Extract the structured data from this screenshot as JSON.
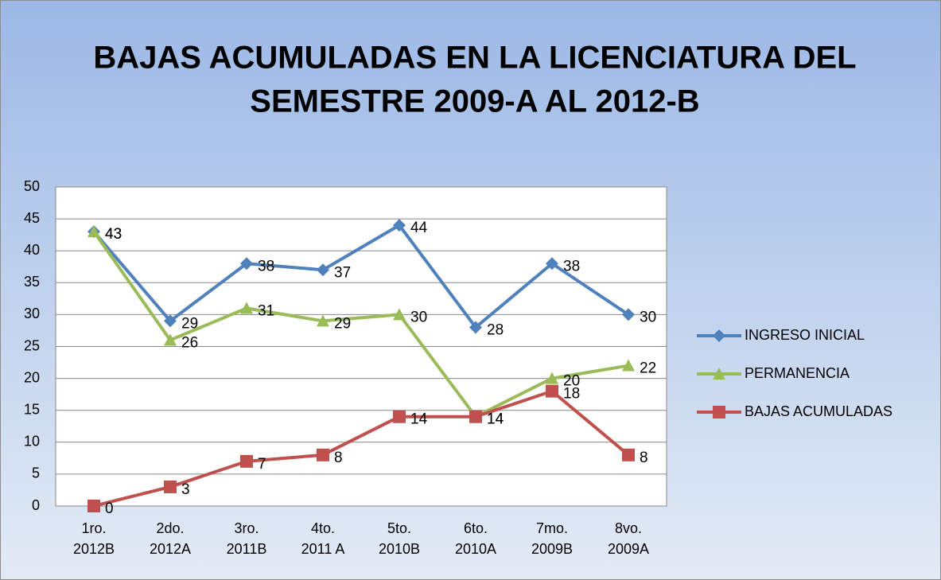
{
  "chart_data": {
    "type": "line",
    "title": [
      "BAJAS ACUMULADAS EN LA LICENCIATURA DEL",
      "SEMESTRE 2009-A AL 2012-B"
    ],
    "categories": [
      [
        "1ro.",
        "2012B"
      ],
      [
        "2do.",
        "2012A"
      ],
      [
        "3ro.",
        "2011B"
      ],
      [
        "4to.",
        "2011 A"
      ],
      [
        "5to.",
        "2010B"
      ],
      [
        "6to.",
        "2010A"
      ],
      [
        "7mo.",
        "2009B"
      ],
      [
        "8vo.",
        "2009A"
      ]
    ],
    "series": [
      {
        "name": "INGRESO INICIAL",
        "color": "#4f81bd",
        "marker": "diamond",
        "values": [
          43,
          29,
          38,
          37,
          44,
          28,
          38,
          30
        ]
      },
      {
        "name": "PERMANENCIA",
        "color": "#9bbb59",
        "marker": "triangle",
        "values": [
          43,
          26,
          31,
          29,
          30,
          14,
          20,
          22
        ]
      },
      {
        "name": "BAJAS ACUMULADAS",
        "color": "#c0504d",
        "marker": "square",
        "values": [
          0,
          3,
          7,
          8,
          14,
          14,
          18,
          8
        ]
      }
    ],
    "ylim": [
      0,
      50
    ],
    "yticks": [
      0,
      5,
      10,
      15,
      20,
      25,
      30,
      35,
      40,
      45,
      50
    ],
    "grid": true,
    "legend": "right"
  }
}
